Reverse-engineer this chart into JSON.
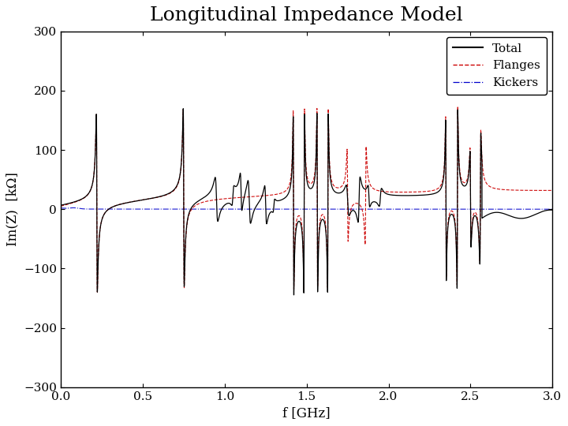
{
  "title": "Longitudinal Impedance Model",
  "xlabel": "f [GHz]",
  "ylabel": "Im(Z)  [kΩ]",
  "xlim": [
    0,
    3
  ],
  "ylim": [
    -300,
    300
  ],
  "yticks": [
    -300,
    -200,
    -100,
    0,
    100,
    200,
    300
  ],
  "xticks": [
    0,
    0.5,
    1,
    1.5,
    2,
    2.5,
    3
  ],
  "legend_labels": [
    "Total",
    "Flanges",
    "Kickers"
  ],
  "total_color": "#000000",
  "flanges_color": "#cc0000",
  "kickers_color": "#0000cc",
  "title_fontsize": 18,
  "axis_fontsize": 12,
  "tick_fontsize": 11
}
